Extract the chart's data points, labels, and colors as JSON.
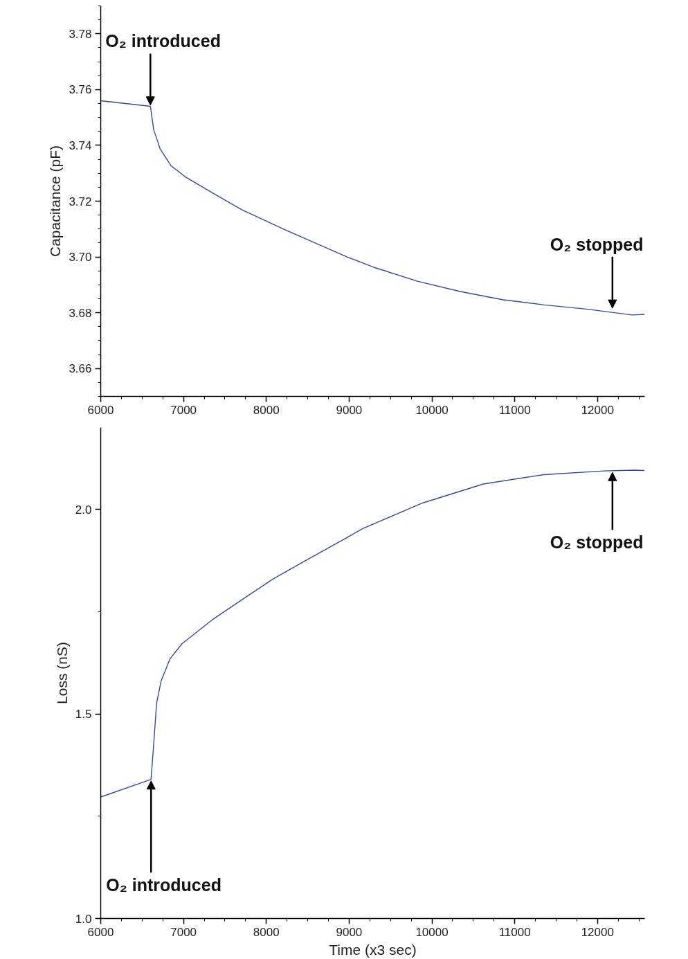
{
  "chart_data": [
    {
      "type": "line",
      "ylabel": "Capacitance (pF)",
      "xlim": [
        6000,
        12570
      ],
      "ylim": [
        3.65,
        3.79
      ],
      "xticks": [
        6000,
        7000,
        8000,
        9000,
        10000,
        11000,
        12000
      ],
      "yticks": [
        {
          "value": 3.66,
          "label": "3.66"
        },
        {
          "value": 3.68,
          "label": "3.68"
        },
        {
          "value": 3.7,
          "label": "3.70"
        },
        {
          "value": 3.72,
          "label": "3.72"
        },
        {
          "value": 3.74,
          "label": "3.74"
        },
        {
          "value": 3.76,
          "label": "3.76"
        },
        {
          "value": 3.78,
          "label": "3.78"
        }
      ],
      "grid": false,
      "marker": "none",
      "line_style": "solid",
      "series": [
        {
          "color": "#39479a",
          "x": [
            6000,
            6600,
            6640,
            6717,
            6850,
            7017,
            7358,
            7700,
            8208,
            8975,
            9317,
            9825,
            10342,
            10850,
            11358,
            11867,
            12208,
            12417,
            12567
          ],
          "values": [
            3.756,
            3.754,
            3.7456,
            3.7388,
            3.7327,
            3.7288,
            3.7228,
            3.717,
            3.71,
            3.7,
            3.6961,
            3.6913,
            3.6876,
            3.6847,
            3.6828,
            3.6813,
            3.68,
            3.6792,
            3.6794
          ]
        }
      ],
      "annotations": [
        {
          "text": "O₂ introduced",
          "x": 6600,
          "y": 3.754
        },
        {
          "text": "O₂ stopped",
          "x": 12180,
          "y": 3.6812
        }
      ]
    },
    {
      "type": "line",
      "xlabel": "Time (x3 sec)",
      "ylabel": "Loss (nS)",
      "xlim": [
        6000,
        12570
      ],
      "ylim": [
        1.0,
        2.2
      ],
      "xticks": [
        6000,
        7000,
        8000,
        9000,
        10000,
        11000,
        12000
      ],
      "yticks": [
        {
          "value": 1.0,
          "label": "1.0"
        },
        {
          "value": 1.5,
          "label": "1.5"
        },
        {
          "value": 2.0,
          "label": "2.0"
        }
      ],
      "grid": false,
      "marker": "none",
      "line_style": "solid",
      "series": [
        {
          "color": "#39479a",
          "x": [
            6000,
            6608,
            6637,
            6675,
            6730,
            6838,
            6983,
            7347,
            7712,
            8075,
            8440,
            8963,
            9164,
            9892,
            10621,
            11350,
            12078,
            12442,
            12567
          ],
          "values": [
            1.297,
            1.34,
            1.418,
            1.526,
            1.581,
            1.635,
            1.672,
            1.73,
            1.78,
            1.829,
            1.871,
            1.93,
            1.953,
            2.016,
            2.062,
            2.085,
            2.094,
            2.096,
            2.095
          ]
        }
      ],
      "annotations": [
        {
          "text": "O₂ introduced",
          "x": 6608,
          "y": 1.34
        },
        {
          "text": "O₂ stopped",
          "x": 12180,
          "y": 2.094
        }
      ]
    }
  ]
}
